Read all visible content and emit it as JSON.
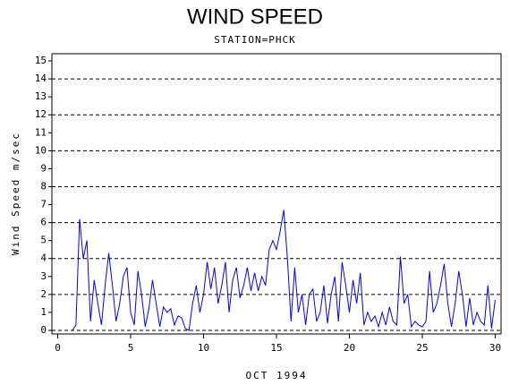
{
  "chart_data": {
    "type": "line",
    "title": "WIND SPEED",
    "subtitle": "STATION=PHCK",
    "x_label": "OCT 1994",
    "y_label": "Wind Speed m/sec",
    "xlim": [
      -0.4,
      30.4
    ],
    "xticks": [
      0,
      5,
      10,
      15,
      20,
      25,
      30
    ],
    "ylim": [
      -0.2,
      15.4
    ],
    "yticks": [
      0,
      1,
      2,
      3,
      4,
      5,
      6,
      7,
      8,
      9,
      10,
      11,
      12,
      13,
      14,
      15
    ],
    "grid_lines": [
      0,
      2,
      4,
      6,
      8,
      10,
      12,
      14
    ],
    "x": [
      1,
      1.25,
      1.5,
      1.75,
      2,
      2.25,
      2.5,
      2.75,
      3,
      3.25,
      3.5,
      3.75,
      4,
      4.25,
      4.5,
      4.75,
      5,
      5.25,
      5.5,
      5.75,
      6,
      6.25,
      6.5,
      6.75,
      7,
      7.25,
      7.5,
      7.75,
      8,
      8.25,
      8.5,
      8.75,
      9,
      9.25,
      9.5,
      9.75,
      10,
      10.25,
      10.5,
      10.75,
      11,
      11.25,
      11.5,
      11.75,
      12,
      12.25,
      12.5,
      12.75,
      13,
      13.25,
      13.5,
      13.75,
      14,
      14.25,
      14.5,
      14.75,
      15,
      15.25,
      15.5,
      15.75,
      16,
      16.25,
      16.5,
      16.75,
      17,
      17.25,
      17.5,
      17.75,
      18,
      18.25,
      18.5,
      18.75,
      19,
      19.25,
      19.5,
      19.75,
      20,
      20.25,
      20.5,
      20.75,
      21,
      21.25,
      21.5,
      21.75,
      22,
      22.25,
      22.5,
      22.75,
      23,
      23.25,
      23.5,
      23.75,
      24,
      24.25,
      24.5,
      24.75,
      25,
      25.25,
      25.5,
      25.75,
      26,
      26.25,
      26.5,
      26.75,
      27,
      27.25,
      27.5,
      27.75,
      28,
      28.25,
      28.5,
      28.75,
      29,
      29.25,
      29.5,
      29.75,
      30
    ],
    "series": [
      {
        "name": "Wind Speed",
        "color": "#0000ff",
        "values": [
          0,
          0.3,
          6.2,
          4,
          5,
          0.5,
          2.8,
          1.5,
          0.3,
          2.5,
          4.3,
          2.5,
          0.5,
          1.5,
          3,
          3.5,
          1,
          0.3,
          3.3,
          2,
          0.2,
          1.2,
          2.8,
          1.5,
          0.2,
          1.3,
          1,
          1.2,
          0.3,
          0.8,
          0.7,
          0.1,
          0,
          1.5,
          2.5,
          1,
          2,
          3.8,
          2.3,
          3.5,
          1.5,
          2.5,
          3.8,
          1,
          2.8,
          3.5,
          1.8,
          2.5,
          3.5,
          2.2,
          3.2,
          2.2,
          3,
          2.5,
          4.5,
          5,
          4.5,
          5.5,
          6.7,
          4,
          0.5,
          3.5,
          1,
          2,
          0.3,
          2,
          2.3,
          0.5,
          1,
          2.5,
          0.4,
          2,
          3,
          0.5,
          3.8,
          2.5,
          1,
          2.8,
          1.5,
          3.2,
          0.3,
          1,
          0.5,
          0.8,
          0.2,
          1,
          0.3,
          1.3,
          0.5,
          0.3,
          4.1,
          1.5,
          2,
          0.2,
          0.5,
          0.3,
          0.2,
          0.5,
          3.3,
          1,
          1.5,
          2.5,
          3.7,
          1.5,
          0.2,
          1.5,
          3.3,
          2,
          0.2,
          1.8,
          0.3,
          1,
          0.5,
          0.3,
          2.5,
          0.1,
          1.7
        ]
      }
    ]
  }
}
